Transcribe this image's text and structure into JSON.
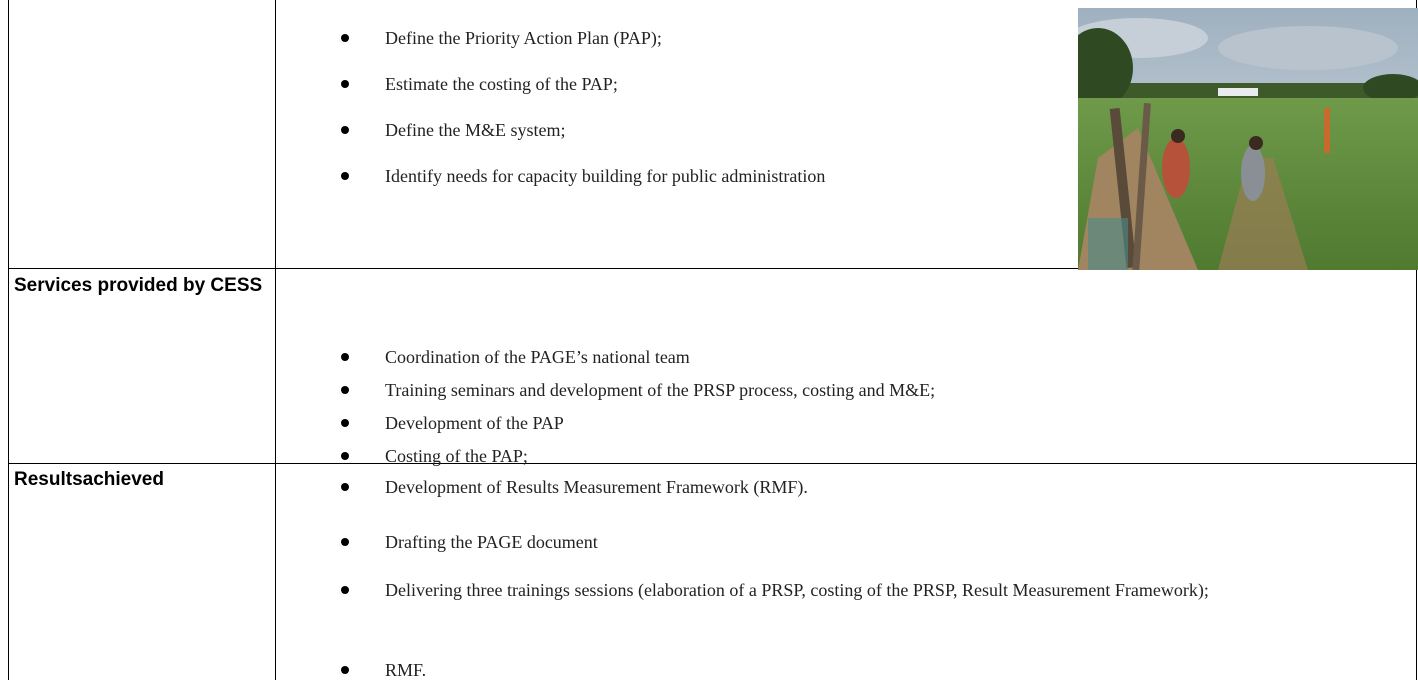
{
  "table": {
    "rows": [
      {
        "label": null,
        "items": [
          "Define the Priority Action Plan (PAP);",
          "Estimate the costing of the PAP;",
          "Define the M&E system;",
          "Identify needs for capacity building for public administration"
        ]
      },
      {
        "label": "Services provided by CESS",
        "items": [
          "Coordination of the PAGE’s national team",
          "Training seminars and development of the PRSP process, costing and M&E;",
          "Development of the PAP",
          "Costing of the PAP;",
          "Development of Results Measurement Framework (RMF)."
        ]
      },
      {
        "label": "Resultsachieved",
        "items": [
          "Drafting the PAGE document",
          "Delivering three trainings sessions (elaboration of a PRSP, costing of the PRSP, Result Measurement Framework);",
          "RMF."
        ]
      }
    ]
  }
}
